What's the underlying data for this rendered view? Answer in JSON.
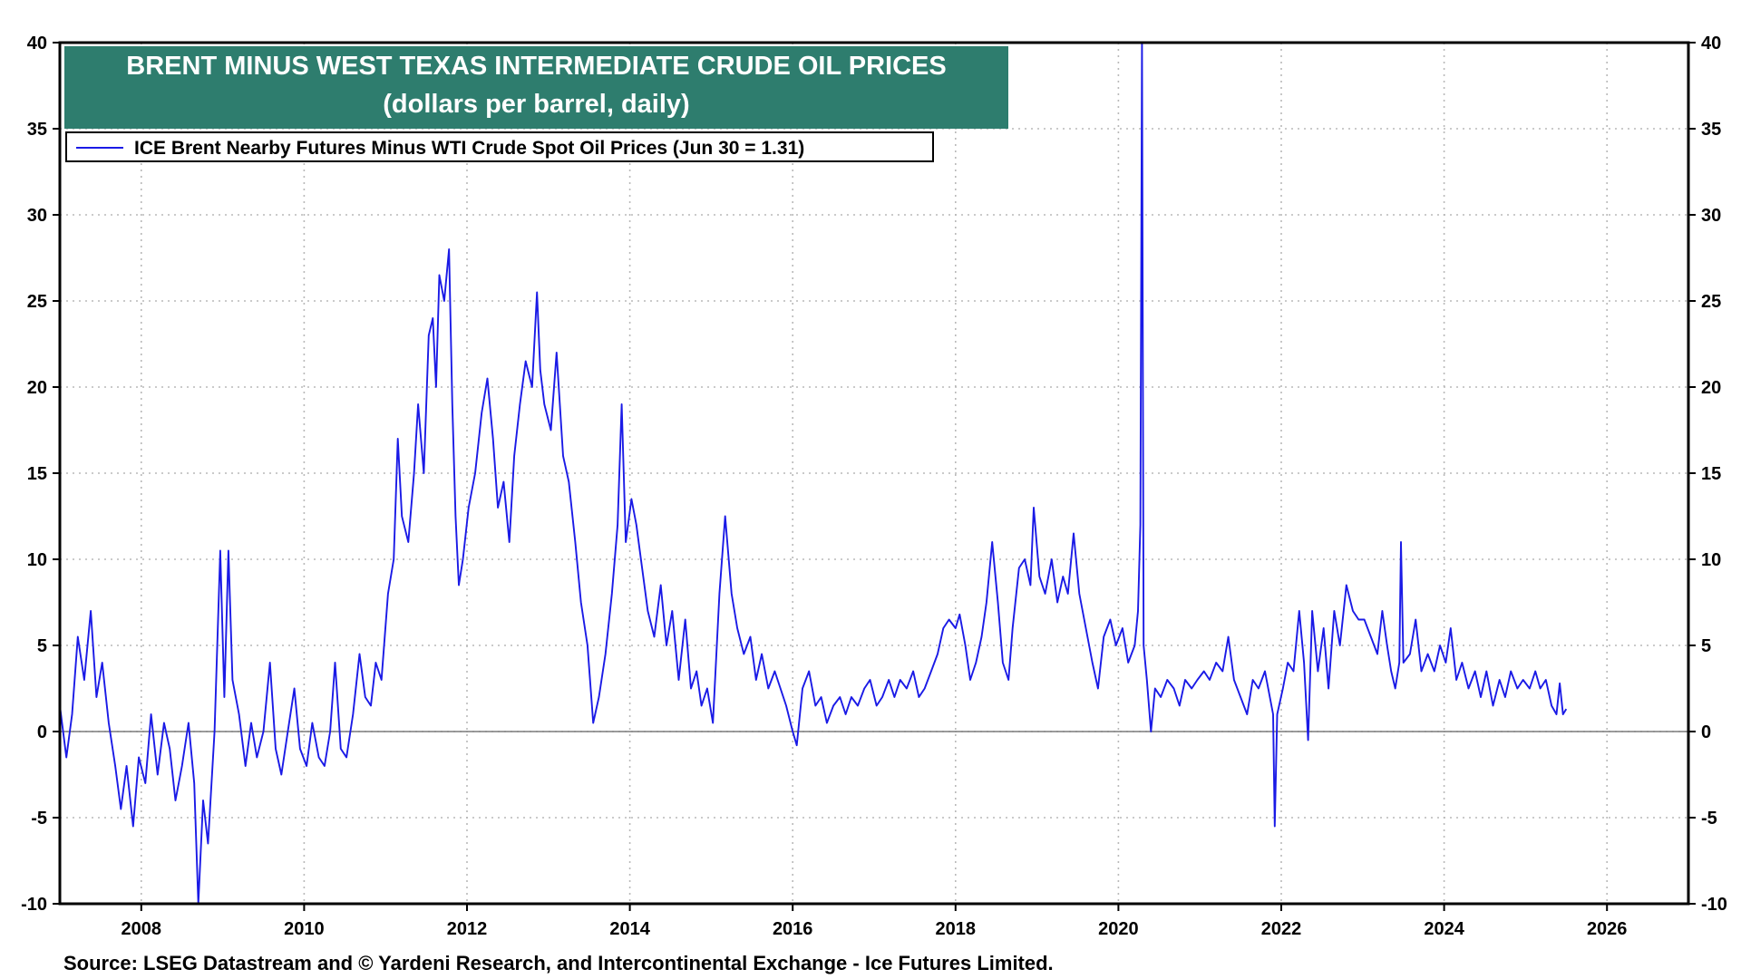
{
  "chart_data": {
    "type": "line",
    "title": "BRENT MINUS WEST TEXAS INTERMEDIATE CRUDE OIL PRICES",
    "subtitle": "(dollars per barrel, daily)",
    "xlim": [
      2007.0,
      2027.0
    ],
    "ylim": [
      -10,
      40
    ],
    "x_ticks": [
      2008,
      2010,
      2012,
      2014,
      2016,
      2018,
      2020,
      2022,
      2024,
      2026
    ],
    "y_ticks": [
      -10,
      -5,
      0,
      5,
      10,
      15,
      20,
      25,
      30,
      35,
      40
    ],
    "y_axis_both_sides": true,
    "grid": true,
    "legend_placement": "top-left",
    "line_color": "#1a1ae6",
    "title_bg_color": "#2e7d6e",
    "series": [
      {
        "name": "ICE Brent Nearby Futures Minus WTI Crude Spot Oil Prices (Jun 30 = 1.31)",
        "points": [
          [
            2007.0,
            1.5
          ],
          [
            2007.08,
            -1.5
          ],
          [
            2007.15,
            1.0
          ],
          [
            2007.22,
            5.5
          ],
          [
            2007.3,
            3.0
          ],
          [
            2007.38,
            7.0
          ],
          [
            2007.45,
            2.0
          ],
          [
            2007.52,
            4.0
          ],
          [
            2007.6,
            0.5
          ],
          [
            2007.68,
            -2.0
          ],
          [
            2007.75,
            -4.5
          ],
          [
            2007.82,
            -2.0
          ],
          [
            2007.9,
            -5.5
          ],
          [
            2007.97,
            -1.5
          ],
          [
            2008.05,
            -3.0
          ],
          [
            2008.12,
            1.0
          ],
          [
            2008.2,
            -2.5
          ],
          [
            2008.28,
            0.5
          ],
          [
            2008.35,
            -1.0
          ],
          [
            2008.42,
            -4.0
          ],
          [
            2008.5,
            -2.0
          ],
          [
            2008.58,
            0.5
          ],
          [
            2008.65,
            -3.0
          ],
          [
            2008.7,
            -10.0
          ],
          [
            2008.76,
            -4.0
          ],
          [
            2008.82,
            -6.5
          ],
          [
            2008.9,
            0.0
          ],
          [
            2008.97,
            10.5
          ],
          [
            2009.02,
            2.0
          ],
          [
            2009.07,
            10.5
          ],
          [
            2009.12,
            3.0
          ],
          [
            2009.2,
            1.0
          ],
          [
            2009.28,
            -2.0
          ],
          [
            2009.35,
            0.5
          ],
          [
            2009.42,
            -1.5
          ],
          [
            2009.5,
            0.0
          ],
          [
            2009.58,
            4.0
          ],
          [
            2009.65,
            -1.0
          ],
          [
            2009.72,
            -2.5
          ],
          [
            2009.8,
            0.0
          ],
          [
            2009.88,
            2.5
          ],
          [
            2009.95,
            -1.0
          ],
          [
            2010.03,
            -2.0
          ],
          [
            2010.1,
            0.5
          ],
          [
            2010.18,
            -1.5
          ],
          [
            2010.25,
            -2.0
          ],
          [
            2010.32,
            0.0
          ],
          [
            2010.38,
            4.0
          ],
          [
            2010.45,
            -1.0
          ],
          [
            2010.52,
            -1.5
          ],
          [
            2010.6,
            1.0
          ],
          [
            2010.68,
            4.5
          ],
          [
            2010.75,
            2.0
          ],
          [
            2010.82,
            1.5
          ],
          [
            2010.88,
            4.0
          ],
          [
            2010.95,
            3.0
          ],
          [
            2011.03,
            8.0
          ],
          [
            2011.1,
            10.0
          ],
          [
            2011.15,
            17.0
          ],
          [
            2011.2,
            12.5
          ],
          [
            2011.28,
            11.0
          ],
          [
            2011.35,
            15.0
          ],
          [
            2011.4,
            19.0
          ],
          [
            2011.47,
            15.0
          ],
          [
            2011.53,
            23.0
          ],
          [
            2011.58,
            24.0
          ],
          [
            2011.62,
            20.0
          ],
          [
            2011.66,
            26.5
          ],
          [
            2011.72,
            25.0
          ],
          [
            2011.78,
            28.0
          ],
          [
            2011.82,
            19.0
          ],
          [
            2011.86,
            12.5
          ],
          [
            2011.9,
            8.5
          ],
          [
            2011.95,
            10.0
          ],
          [
            2012.02,
            13.0
          ],
          [
            2012.1,
            15.0
          ],
          [
            2012.18,
            18.5
          ],
          [
            2012.25,
            20.5
          ],
          [
            2012.32,
            17.0
          ],
          [
            2012.38,
            13.0
          ],
          [
            2012.45,
            14.5
          ],
          [
            2012.52,
            11.0
          ],
          [
            2012.58,
            16.0
          ],
          [
            2012.65,
            19.0
          ],
          [
            2012.72,
            21.5
          ],
          [
            2012.8,
            20.0
          ],
          [
            2012.86,
            25.5
          ],
          [
            2012.9,
            21.0
          ],
          [
            2012.95,
            19.0
          ],
          [
            2013.03,
            17.5
          ],
          [
            2013.1,
            22.0
          ],
          [
            2013.18,
            16.0
          ],
          [
            2013.25,
            14.5
          ],
          [
            2013.33,
            11.0
          ],
          [
            2013.4,
            7.5
          ],
          [
            2013.48,
            5.0
          ],
          [
            2013.55,
            0.5
          ],
          [
            2013.62,
            2.0
          ],
          [
            2013.7,
            4.5
          ],
          [
            2013.78,
            8.0
          ],
          [
            2013.85,
            12.0
          ],
          [
            2013.9,
            19.0
          ],
          [
            2013.95,
            11.0
          ],
          [
            2014.02,
            13.5
          ],
          [
            2014.08,
            12.0
          ],
          [
            2014.15,
            9.5
          ],
          [
            2014.22,
            7.0
          ],
          [
            2014.3,
            5.5
          ],
          [
            2014.38,
            8.5
          ],
          [
            2014.45,
            5.0
          ],
          [
            2014.52,
            7.0
          ],
          [
            2014.6,
            3.0
          ],
          [
            2014.68,
            6.5
          ],
          [
            2014.75,
            2.5
          ],
          [
            2014.82,
            3.5
          ],
          [
            2014.88,
            1.5
          ],
          [
            2014.95,
            2.5
          ],
          [
            2015.02,
            0.5
          ],
          [
            2015.1,
            8.0
          ],
          [
            2015.17,
            12.5
          ],
          [
            2015.25,
            8.0
          ],
          [
            2015.32,
            6.0
          ],
          [
            2015.4,
            4.5
          ],
          [
            2015.48,
            5.5
          ],
          [
            2015.55,
            3.0
          ],
          [
            2015.62,
            4.5
          ],
          [
            2015.7,
            2.5
          ],
          [
            2015.78,
            3.5
          ],
          [
            2015.85,
            2.5
          ],
          [
            2015.92,
            1.5
          ],
          [
            2016.0,
            0.0
          ],
          [
            2016.05,
            -0.8
          ],
          [
            2016.12,
            2.5
          ],
          [
            2016.2,
            3.5
          ],
          [
            2016.28,
            1.5
          ],
          [
            2016.35,
            2.0
          ],
          [
            2016.42,
            0.5
          ],
          [
            2016.5,
            1.5
          ],
          [
            2016.58,
            2.0
          ],
          [
            2016.65,
            1.0
          ],
          [
            2016.72,
            2.0
          ],
          [
            2016.8,
            1.5
          ],
          [
            2016.88,
            2.5
          ],
          [
            2016.95,
            3.0
          ],
          [
            2017.03,
            1.5
          ],
          [
            2017.1,
            2.0
          ],
          [
            2017.18,
            3.0
          ],
          [
            2017.25,
            2.0
          ],
          [
            2017.32,
            3.0
          ],
          [
            2017.4,
            2.5
          ],
          [
            2017.48,
            3.5
          ],
          [
            2017.55,
            2.0
          ],
          [
            2017.62,
            2.5
          ],
          [
            2017.7,
            3.5
          ],
          [
            2017.78,
            4.5
          ],
          [
            2017.85,
            6.0
          ],
          [
            2017.92,
            6.5
          ],
          [
            2018.0,
            6.0
          ],
          [
            2018.05,
            6.8
          ],
          [
            2018.12,
            5.0
          ],
          [
            2018.18,
            3.0
          ],
          [
            2018.25,
            4.0
          ],
          [
            2018.32,
            5.5
          ],
          [
            2018.38,
            7.5
          ],
          [
            2018.45,
            11.0
          ],
          [
            2018.52,
            7.5
          ],
          [
            2018.58,
            4.0
          ],
          [
            2018.65,
            3.0
          ],
          [
            2018.7,
            6.0
          ],
          [
            2018.78,
            9.5
          ],
          [
            2018.85,
            10.0
          ],
          [
            2018.92,
            8.5
          ],
          [
            2018.96,
            13.0
          ],
          [
            2019.03,
            9.0
          ],
          [
            2019.1,
            8.0
          ],
          [
            2019.18,
            10.0
          ],
          [
            2019.25,
            7.5
          ],
          [
            2019.32,
            9.0
          ],
          [
            2019.38,
            8.0
          ],
          [
            2019.45,
            11.5
          ],
          [
            2019.52,
            8.0
          ],
          [
            2019.6,
            6.0
          ],
          [
            2019.68,
            4.0
          ],
          [
            2019.75,
            2.5
          ],
          [
            2019.82,
            5.5
          ],
          [
            2019.9,
            6.5
          ],
          [
            2019.97,
            5.0
          ],
          [
            2020.05,
            6.0
          ],
          [
            2020.12,
            4.0
          ],
          [
            2020.2,
            5.0
          ],
          [
            2020.24,
            7.0
          ],
          [
            2020.27,
            12.0
          ],
          [
            2020.29,
            40.0
          ],
          [
            2020.31,
            5.0
          ],
          [
            2020.35,
            3.0
          ],
          [
            2020.4,
            0.0
          ],
          [
            2020.45,
            2.5
          ],
          [
            2020.52,
            2.0
          ],
          [
            2020.6,
            3.0
          ],
          [
            2020.68,
            2.5
          ],
          [
            2020.75,
            1.5
          ],
          [
            2020.82,
            3.0
          ],
          [
            2020.9,
            2.5
          ],
          [
            2020.97,
            3.0
          ],
          [
            2021.05,
            3.5
          ],
          [
            2021.12,
            3.0
          ],
          [
            2021.2,
            4.0
          ],
          [
            2021.28,
            3.5
          ],
          [
            2021.35,
            5.5
          ],
          [
            2021.42,
            3.0
          ],
          [
            2021.5,
            2.0
          ],
          [
            2021.58,
            1.0
          ],
          [
            2021.65,
            3.0
          ],
          [
            2021.72,
            2.5
          ],
          [
            2021.8,
            3.5
          ],
          [
            2021.86,
            2.0
          ],
          [
            2021.9,
            1.0
          ],
          [
            2021.92,
            -5.5
          ],
          [
            2021.95,
            1.0
          ],
          [
            2022.02,
            2.5
          ],
          [
            2022.08,
            4.0
          ],
          [
            2022.15,
            3.5
          ],
          [
            2022.22,
            7.0
          ],
          [
            2022.28,
            4.0
          ],
          [
            2022.33,
            -0.5
          ],
          [
            2022.38,
            7.0
          ],
          [
            2022.45,
            3.5
          ],
          [
            2022.52,
            6.0
          ],
          [
            2022.58,
            2.5
          ],
          [
            2022.65,
            7.0
          ],
          [
            2022.72,
            5.0
          ],
          [
            2022.8,
            8.5
          ],
          [
            2022.88,
            7.0
          ],
          [
            2022.95,
            6.5
          ],
          [
            2023.02,
            6.5
          ],
          [
            2023.1,
            5.5
          ],
          [
            2023.18,
            4.5
          ],
          [
            2023.24,
            7.0
          ],
          [
            2023.3,
            5.0
          ],
          [
            2023.35,
            3.5
          ],
          [
            2023.4,
            2.5
          ],
          [
            2023.45,
            4.0
          ],
          [
            2023.47,
            11.0
          ],
          [
            2023.5,
            4.0
          ],
          [
            2023.58,
            4.5
          ],
          [
            2023.65,
            6.5
          ],
          [
            2023.72,
            3.5
          ],
          [
            2023.8,
            4.5
          ],
          [
            2023.88,
            3.5
          ],
          [
            2023.95,
            5.0
          ],
          [
            2024.02,
            4.0
          ],
          [
            2024.08,
            6.0
          ],
          [
            2024.15,
            3.0
          ],
          [
            2024.22,
            4.0
          ],
          [
            2024.3,
            2.5
          ],
          [
            2024.38,
            3.5
          ],
          [
            2024.45,
            2.0
          ],
          [
            2024.52,
            3.5
          ],
          [
            2024.6,
            1.5
          ],
          [
            2024.68,
            3.0
          ],
          [
            2024.75,
            2.0
          ],
          [
            2024.82,
            3.5
          ],
          [
            2024.9,
            2.5
          ],
          [
            2024.97,
            3.0
          ],
          [
            2025.05,
            2.5
          ],
          [
            2025.12,
            3.5
          ],
          [
            2025.18,
            2.5
          ],
          [
            2025.25,
            3.0
          ],
          [
            2025.32,
            1.5
          ],
          [
            2025.38,
            1.0
          ],
          [
            2025.42,
            2.8
          ],
          [
            2025.46,
            1.0
          ],
          [
            2025.5,
            1.31
          ]
        ]
      }
    ]
  },
  "source_note": "Source: LSEG Datastream and © Yardeni Research, and Intercontinental Exchange - Ice Futures Limited."
}
